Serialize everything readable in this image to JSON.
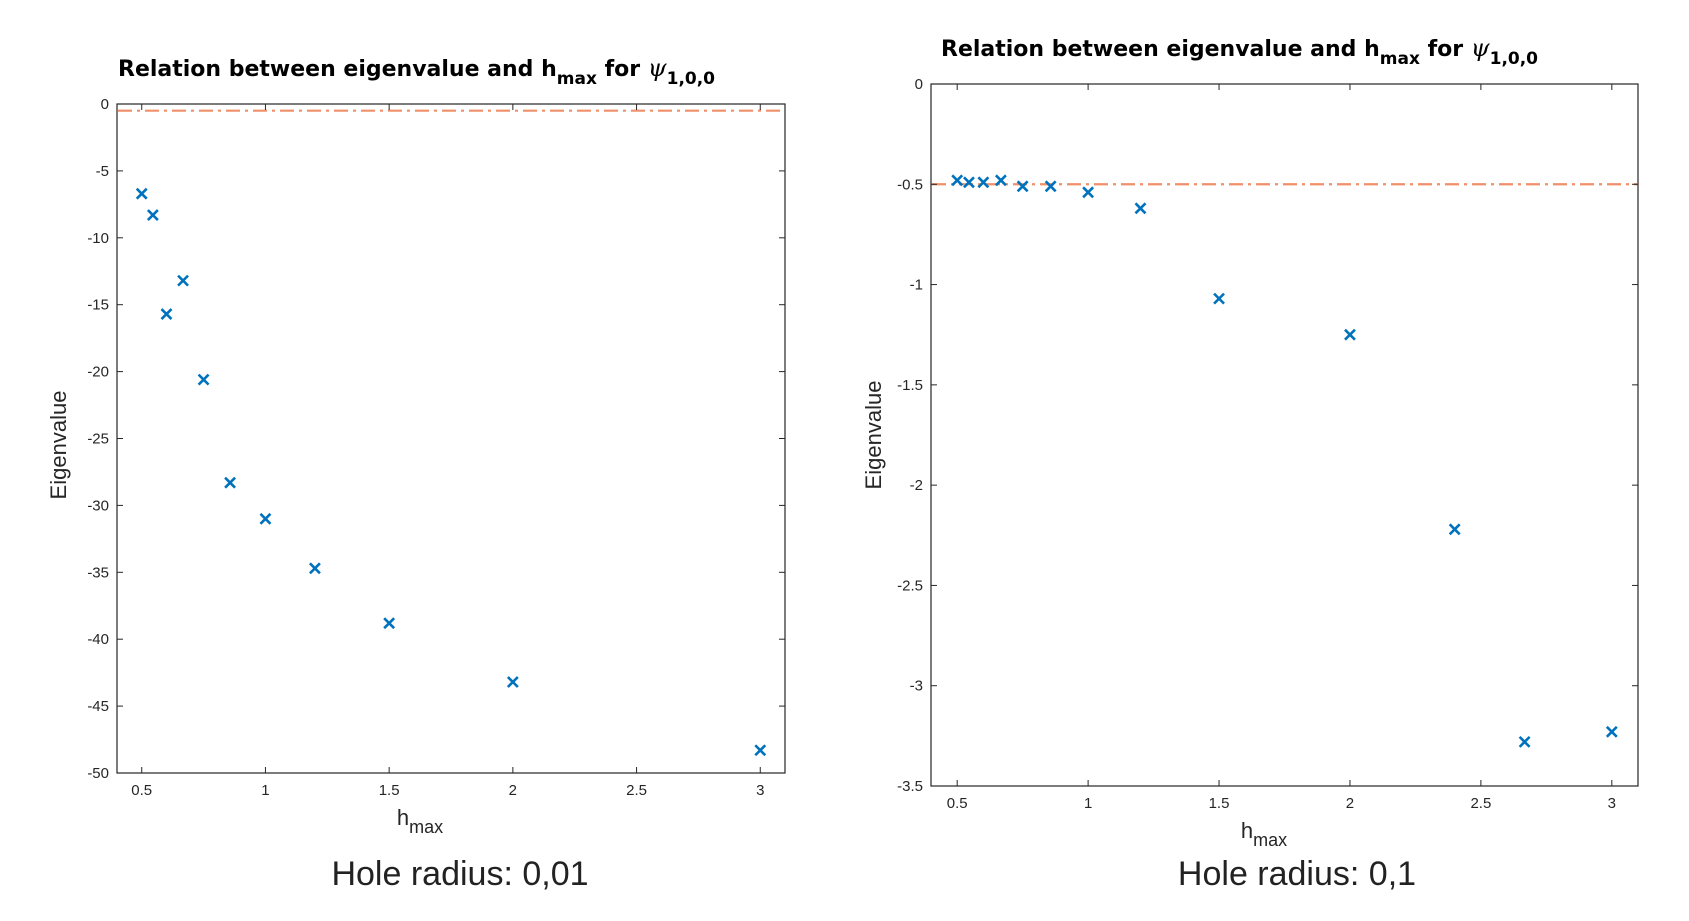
{
  "colors": {
    "marker": "#0072bd",
    "refline": "#f0906a",
    "axis": "#262626"
  },
  "chart_data": [
    {
      "type": "scatter",
      "title": {
        "main": "Relation between eigenvalue and h",
        "sub": "max",
        "tail": " for ",
        "psi": "ψ",
        "psi_sub": "1,0,0"
      },
      "xlabel": {
        "main": "h",
        "sub": "max"
      },
      "ylabel": "Eigenvalue",
      "caption": "Hole radius: 0,01",
      "xlim": [
        0.4,
        3.1
      ],
      "ylim": [
        -50,
        0
      ],
      "xticks": [
        0.5,
        1,
        1.5,
        2,
        2.5,
        3
      ],
      "xtick_labels": [
        "0.5",
        "1",
        "1.5",
        "2",
        "2.5",
        "3"
      ],
      "yticks": [
        0,
        -5,
        -10,
        -15,
        -20,
        -25,
        -30,
        -35,
        -40,
        -45,
        -50
      ],
      "ytick_labels": [
        "0",
        "-5",
        "-10",
        "-15",
        "-20",
        "-25",
        "-30",
        "-35",
        "-40",
        "-45",
        "-50"
      ],
      "reference_line": {
        "y": -0.5,
        "style": "dash-dot"
      },
      "points": {
        "x": [
          0.5,
          0.545,
          0.6,
          0.667,
          0.75,
          0.857,
          1.0,
          1.2,
          1.5,
          2.0,
          3.0
        ],
        "y": [
          -6.7,
          -8.3,
          -15.7,
          -13.2,
          -20.6,
          -28.3,
          -31.0,
          -34.7,
          -38.8,
          -43.2,
          -48.3
        ]
      },
      "grid": false
    },
    {
      "type": "scatter",
      "title": {
        "main": "Relation between eigenvalue and h",
        "sub": "max",
        "tail": " for ",
        "psi": "ψ",
        "psi_sub": "1,0,0"
      },
      "xlabel": {
        "main": "h",
        "sub": "max"
      },
      "ylabel": "Eigenvalue",
      "caption": "Hole radius: 0,1",
      "xlim": [
        0.4,
        3.1
      ],
      "ylim": [
        -3.5,
        0
      ],
      "xticks": [
        0.5,
        1,
        1.5,
        2,
        2.5,
        3
      ],
      "xtick_labels": [
        "0.5",
        "1",
        "1.5",
        "2",
        "2.5",
        "3"
      ],
      "yticks": [
        0,
        -0.5,
        -1,
        -1.5,
        -2,
        -2.5,
        -3,
        -3.5
      ],
      "ytick_labels": [
        "0",
        "-0.5",
        "-1",
        "-1.5",
        "-2",
        "-2.5",
        "-3",
        "-3.5"
      ],
      "reference_line": {
        "y": -0.5,
        "style": "dash-dot"
      },
      "points": {
        "x": [
          0.5,
          0.545,
          0.6,
          0.667,
          0.75,
          0.857,
          1.0,
          1.2,
          1.5,
          2.0,
          2.4,
          2.667,
          3.0
        ],
        "y": [
          -0.48,
          -0.49,
          -0.49,
          -0.48,
          -0.51,
          -0.51,
          -0.54,
          -0.62,
          -1.07,
          -1.25,
          -2.22,
          -3.28,
          -3.23
        ]
      },
      "grid": false
    }
  ]
}
